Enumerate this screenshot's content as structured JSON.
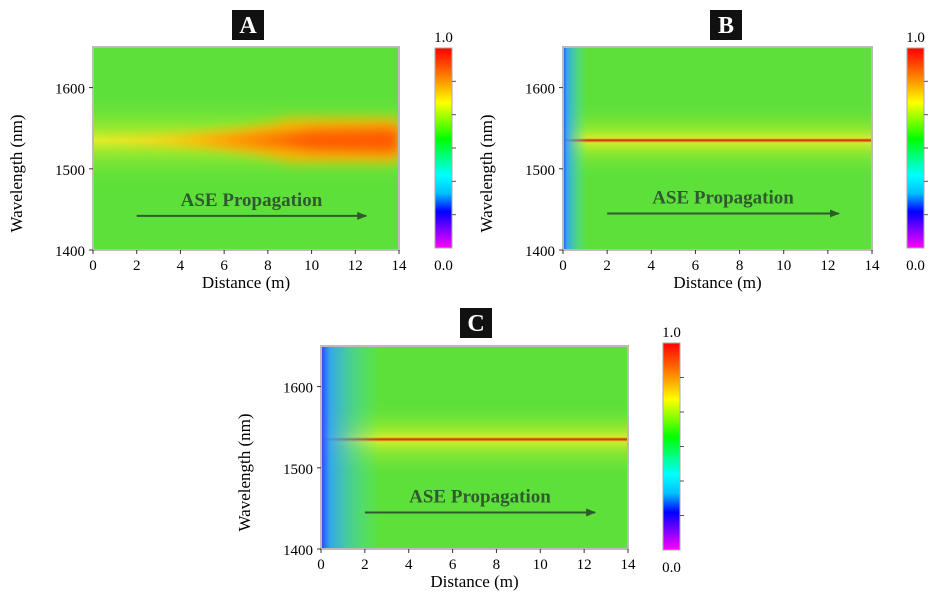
{
  "chart_data": [
    {
      "type": "heatmap",
      "panel_label": "A",
      "xlabel": "Distance (m)",
      "ylabel": "Wavelength (nm)",
      "xlim": [
        0,
        14
      ],
      "ylim": [
        1400,
        1650
      ],
      "x_ticks": [
        "0",
        "2",
        "4",
        "6",
        "8",
        "10",
        "12",
        "14"
      ],
      "y_ticks": [
        "1400",
        "1500",
        "1600"
      ],
      "colorbar": {
        "min_label": "0.0",
        "max_label": "1.0",
        "range": [
          0.0,
          1.0
        ]
      },
      "annotation": "ASE Propagation",
      "annotation_arrow": {
        "from_x": 2,
        "to_x": 12.5,
        "y": 1442
      },
      "peak_wavelength_nm": 1535,
      "description_values": {
        "peak_intensity_near_end": 0.9,
        "background_level": 0.5
      }
    },
    {
      "type": "heatmap",
      "panel_label": "B",
      "xlabel": "Distance (m)",
      "ylabel": "Wavelength (nm)",
      "xlim": [
        0,
        14
      ],
      "ylim": [
        1400,
        1650
      ],
      "x_ticks": [
        "0",
        "2",
        "4",
        "6",
        "8",
        "10",
        "12",
        "14"
      ],
      "y_ticks": [
        "1400",
        "1500",
        "1600"
      ],
      "colorbar": {
        "min_label": "0.0",
        "max_label": "1.0",
        "range": [
          0.0,
          1.0
        ]
      },
      "annotation": "ASE Propagation",
      "annotation_arrow": {
        "from_x": 2,
        "to_x": 12.5,
        "y": 1445
      },
      "peak_wavelength_nm": 1535,
      "description_values": {
        "peak_intensity_near_end": 0.85,
        "background_level": 0.5
      }
    },
    {
      "type": "heatmap",
      "panel_label": "C",
      "xlabel": "Distance (m)",
      "ylabel": "Wavelength (nm)",
      "xlim": [
        0,
        14
      ],
      "ylim": [
        1400,
        1650
      ],
      "x_ticks": [
        "0",
        "2",
        "4",
        "6",
        "8",
        "10",
        "12",
        "14"
      ],
      "y_ticks": [
        "1400",
        "1500",
        "1600"
      ],
      "colorbar": {
        "min_label": "0.0",
        "max_label": "1.0",
        "range": [
          0.0,
          1.0
        ]
      },
      "annotation": "ASE Propagation",
      "annotation_arrow": {
        "from_x": 2,
        "to_x": 12.5,
        "y": 1445
      },
      "peak_wavelength_nm": 1535,
      "description_values": {
        "peak_intensity_near_end": 0.8,
        "background_level": 0.5
      }
    }
  ],
  "colors": {
    "colormap": [
      "#ff00ff",
      "#8000ff",
      "#0000ff",
      "#00bfff",
      "#00ffff",
      "#00ff80",
      "#00ff00",
      "#80ff00",
      "#ffff00",
      "#ffa500",
      "#ff5000",
      "#ff0000"
    ],
    "arrow": "#2f5a2f",
    "label_bg": "#111111",
    "label_fg": "#ffffff"
  }
}
